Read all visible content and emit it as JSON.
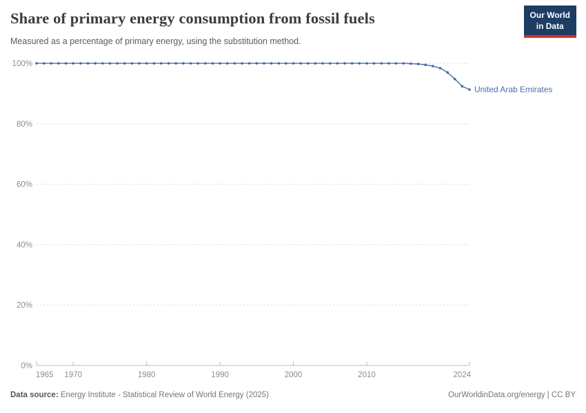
{
  "header": {
    "title": "Share of primary energy consumption from fossil fuels",
    "subtitle": "Measured as a percentage of primary energy, using the substitution method.",
    "logo": {
      "line1": "Our World",
      "line2": "in Data",
      "bg_color": "#1d3d63",
      "accent_color": "#c9342b"
    }
  },
  "chart_data": {
    "type": "line",
    "title": "Share of primary energy consumption from fossil fuels",
    "xlabel": "",
    "ylabel": "",
    "xlim": [
      1965,
      2024
    ],
    "ylim": [
      0,
      100
    ],
    "x_ticks": [
      1965,
      1970,
      1980,
      1990,
      2000,
      2010,
      2024
    ],
    "y_ticks": [
      0,
      20,
      40,
      60,
      80,
      100
    ],
    "y_tick_suffix": "%",
    "grid": "horizontal-dashed",
    "legend_position": "end-of-line-label",
    "line_color": "#5b79ae",
    "marker_color": "#4667a3",
    "label_color": "#4d6eaa",
    "series": [
      {
        "name": "United Arab Emirates",
        "x": [
          1965,
          1966,
          1967,
          1968,
          1969,
          1970,
          1971,
          1972,
          1973,
          1974,
          1975,
          1976,
          1977,
          1978,
          1979,
          1980,
          1981,
          1982,
          1983,
          1984,
          1985,
          1986,
          1987,
          1988,
          1989,
          1990,
          1991,
          1992,
          1993,
          1994,
          1995,
          1996,
          1997,
          1998,
          1999,
          2000,
          2001,
          2002,
          2003,
          2004,
          2005,
          2006,
          2007,
          2008,
          2009,
          2010,
          2011,
          2012,
          2013,
          2014,
          2015,
          2016,
          2017,
          2018,
          2019,
          2020,
          2021,
          2022,
          2023,
          2024
        ],
        "values": [
          100,
          100,
          100,
          100,
          100,
          100,
          100,
          100,
          100,
          100,
          100,
          100,
          100,
          100,
          100,
          100,
          100,
          100,
          100,
          100,
          100,
          100,
          100,
          100,
          100,
          100,
          100,
          100,
          100,
          100,
          100,
          100,
          100,
          100,
          100,
          100,
          100,
          100,
          100,
          100,
          100,
          100,
          100,
          100,
          100,
          100,
          100,
          100,
          100,
          100,
          100,
          99.9,
          99.8,
          99.5,
          99.1,
          98.4,
          97.0,
          94.8,
          92.4,
          91.3
        ]
      }
    ]
  },
  "footer": {
    "data_source_label": "Data source:",
    "data_source": "Energy Institute - Statistical Review of World Energy (2025)",
    "rights": "OurWorldinData.org/energy | CC BY"
  }
}
